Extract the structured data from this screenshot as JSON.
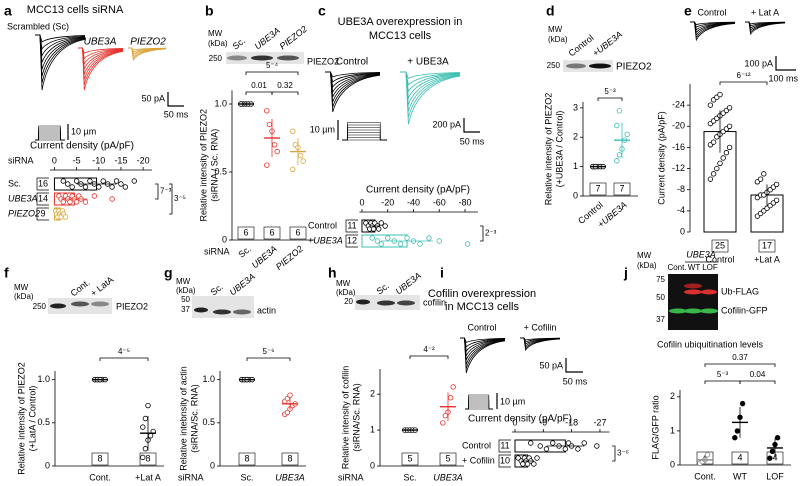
{
  "figure": {
    "panel_letters": [
      "a",
      "b",
      "c",
      "d",
      "e",
      "f",
      "g",
      "h",
      "i",
      "j"
    ],
    "a": {
      "title": "MCC13 cells siRNA",
      "traces": [
        "Scrambled (Sc)",
        "UBE3A",
        "PIEZO2"
      ],
      "scale": [
        "50 pA",
        "50 ms",
        "10 µm"
      ]
    },
    "b": {
      "mw": [
        "MW",
        "(kDa)"
      ],
      "marker": [
        250
      ],
      "lanes": [
        "Sc.",
        "UBE3A",
        "PIEZO2"
      ],
      "band": "PIEZO2"
    },
    "c": {
      "title": [
        "UBE3A overexpression in",
        "MCC13 cells"
      ],
      "traces": [
        "Control",
        "+ UBE3A"
      ],
      "scale": [
        "10 µm",
        "200 pA",
        "50 ms"
      ]
    },
    "d": {
      "mw": [
        "MW",
        "(kDa)"
      ],
      "marker": [
        250
      ],
      "lanes": [
        "Control",
        "+UBE3A"
      ],
      "band": "PIEZO2"
    },
    "e": {
      "traces": [
        "Control",
        "+ Lat A"
      ],
      "scale": [
        "100 pA",
        "100 ms"
      ]
    },
    "f": {
      "mw": [
        "MW",
        "(kDa)"
      ],
      "marker": [
        250
      ],
      "lanes": [
        "Cont.",
        "+ LatA"
      ],
      "band": "PIEZO2"
    },
    "g": {
      "mw": [
        "MW",
        "(kDa)"
      ],
      "marker": [
        50,
        37
      ],
      "lanes": [
        "Sc.",
        "UBE3A"
      ],
      "band": "actin"
    },
    "h": {
      "mw": [
        "MW",
        "(kDa)"
      ],
      "marker": [
        20
      ],
      "lanes": [
        "Sc.",
        "UBE3A"
      ],
      "band": "cofilin"
    },
    "i": {
      "title": [
        "Cofilin overexpression",
        "in MCC13 cells"
      ],
      "traces": [
        "Control",
        "+ Cofilin"
      ],
      "scale": [
        "50 pA",
        "50 ms",
        "10 µm"
      ]
    },
    "j": {
      "mw": [
        "MW",
        "(kDa)"
      ],
      "group": "UBE3A",
      "lanes": [
        "Cont.",
        "WT",
        "LOF"
      ],
      "marker": [
        75,
        50,
        37
      ],
      "bands": [
        "Ub-FLAG",
        "Cofilin-GFP"
      ]
    }
  },
  "chart_data": [
    {
      "type": "bar",
      "orientation": "horizontal",
      "title": "Current density (pA/pF)",
      "xlabel": "siRNA",
      "categories": [
        "Sc.",
        "UBE3A",
        "PIEZO2"
      ],
      "n": [
        16,
        14,
        9
      ],
      "values": [
        -9.5,
        -4.5,
        -1.3
      ],
      "errors": [
        4.5,
        3,
        0.7
      ],
      "points": [
        [
          -2,
          -3,
          -4,
          -5,
          -6,
          -7,
          -8,
          -9,
          -10,
          -11,
          -12,
          -13,
          -14,
          -15,
          -16,
          -18
        ],
        [
          -1,
          -1.5,
          -2,
          -2.5,
          -3,
          -3.5,
          -4,
          -4.5,
          -5,
          -5.5,
          -6,
          -7,
          -9,
          -13
        ],
        [
          -0.3,
          -0.5,
          -0.8,
          -1,
          -1.2,
          -1.5,
          -1.8,
          -2,
          -2.5
        ]
      ],
      "colors": [
        "#000000",
        "#e8302a",
        "#d9a53a"
      ],
      "xlim": [
        1,
        -22
      ],
      "xticks": [
        0,
        -5,
        -10,
        -15,
        -20
      ],
      "stats": [
        "7⁻³",
        "3⁻⁵"
      ]
    },
    {
      "type": "dot",
      "ylabel": [
        "Relative intensity of PIEZO2",
        "(siRNA / Sc. RNA)"
      ],
      "xlabel": "siRNA",
      "categories": [
        "Sc.",
        "UBE3A",
        "PIEZO2"
      ],
      "n": [
        6,
        6,
        6
      ],
      "values": [
        1.0,
        0.75,
        0.65
      ],
      "errors": [
        0.01,
        0.14,
        0.1
      ],
      "points": [
        [
          1,
          1,
          1,
          1,
          1,
          1
        ],
        [
          0.95,
          0.85,
          0.8,
          0.7,
          0.65,
          0.55
        ],
        [
          0.8,
          0.7,
          0.68,
          0.62,
          0.58,
          0.52
        ]
      ],
      "colors": [
        "#000000",
        "#e8302a",
        "#d9a53a"
      ],
      "ylim": [
        0,
        1.1
      ],
      "yticks": [
        0,
        0.5,
        {
          "value": 1,
          "label": "1.0"
        }
      ],
      "stats": [
        "0.01",
        "0.32",
        "5⁻⁴"
      ]
    },
    {
      "type": "bar",
      "orientation": "horizontal",
      "title": "Current density (pA/pF)",
      "categories": [
        "Control",
        "+UBE3A"
      ],
      "n": [
        11,
        12
      ],
      "values": [
        -10,
        -35
      ],
      "errors": [
        4,
        20
      ],
      "points": [
        [
          -3,
          -5,
          -6,
          -7,
          -8,
          -9,
          -10,
          -12,
          -13,
          -15,
          -18
        ],
        [
          -8,
          -12,
          -15,
          -20,
          -25,
          -30,
          -35,
          -40,
          -45,
          -52,
          -60,
          -82
        ]
      ],
      "colors": [
        "#000000",
        "#3cbfb0"
      ],
      "xlim": [
        2,
        -90
      ],
      "xticks": [
        0,
        -20,
        -40,
        -60,
        -80
      ],
      "stats": [
        "2⁻³"
      ]
    },
    {
      "type": "dot",
      "ylabel": [
        "Relative intensity of PIEZO2",
        "(+UBE3A / Control)"
      ],
      "categories": [
        "Control",
        "+UBE3A"
      ],
      "n": [
        7,
        7
      ],
      "values": [
        1.0,
        1.9
      ],
      "errors": [
        0.02,
        0.6
      ],
      "points": [
        [
          1,
          1,
          1,
          1,
          1,
          1,
          1
        ],
        [
          1.2,
          1.4,
          1.6,
          1.9,
          2.1,
          2.4,
          2.9
        ]
      ],
      "colors": [
        "#000000",
        "#3cbfb0"
      ],
      "ylim": [
        0,
        3.2
      ],
      "yticks": [
        0,
        1,
        2,
        3
      ],
      "stats": [
        "5⁻³"
      ]
    },
    {
      "type": "bar",
      "orientation": "vertical",
      "ylabel": [
        "Current density (pA/pF)"
      ],
      "categories": [
        "Control",
        "+Lat A"
      ],
      "n": [
        25,
        17
      ],
      "values": [
        -19,
        -7
      ],
      "errors": [
        4,
        2
      ],
      "points": [
        [
          -10,
          -11,
          -12,
          -13,
          -14,
          -15,
          -16,
          -16.5,
          -17,
          -18,
          -18.5,
          -19,
          -19.5,
          -20,
          -20.5,
          -21,
          -21.5,
          -22,
          -22.5,
          -23,
          -23.5,
          -24,
          -25,
          -25.5,
          -26
        ],
        [
          -3,
          -3.5,
          -4,
          -4.5,
          -5,
          -5.5,
          -6,
          -6.5,
          -7,
          -7,
          -7.5,
          -8,
          -8.5,
          -9,
          -9.5,
          -10,
          -11
        ]
      ],
      "colors": [
        "#000000",
        "#000000"
      ],
      "ylim": [
        0,
        -28
      ],
      "yticks": [
        0,
        -4,
        -8,
        -12,
        -16,
        -20,
        -24
      ],
      "stats": [
        "6⁻¹²"
      ]
    },
    {
      "type": "dot",
      "ylabel": [
        "Relative intensity of PIEZO2",
        "(+LatA / Control)"
      ],
      "categories": [
        "Cont.",
        "+Lat A"
      ],
      "n": [
        8,
        8
      ],
      "values": [
        1.0,
        0.38
      ],
      "errors": [
        0.01,
        0.2
      ],
      "points": [
        [
          1,
          1,
          1,
          1,
          1,
          1,
          1,
          1
        ],
        [
          0.1,
          0.2,
          0.3,
          0.35,
          0.4,
          0.45,
          0.55,
          0.7
        ]
      ],
      "colors": [
        "#000000",
        "#000000"
      ],
      "ylim": [
        0,
        1.1
      ],
      "yticks": [
        0,
        0.5,
        {
          "value": 1,
          "label": "1.0"
        }
      ],
      "stats": [
        "4⁻⁵"
      ]
    },
    {
      "type": "dot",
      "ylabel": [
        "Relative intebnsity of actin",
        "(siRNA/Sc. RNA)"
      ],
      "xlabel": "siRNA",
      "categories": [
        "Sc.",
        "UBE3A"
      ],
      "n": [
        8,
        8
      ],
      "values": [
        1.0,
        0.72
      ],
      "errors": [
        0.01,
        0.07
      ],
      "points": [
        [
          1,
          1,
          1,
          1,
          1,
          1,
          1,
          1
        ],
        [
          0.6,
          0.62,
          0.66,
          0.7,
          0.72,
          0.75,
          0.78,
          0.82
        ]
      ],
      "colors": [
        "#000000",
        "#e8302a"
      ],
      "ylim": [
        0,
        1.1
      ],
      "yticks": [
        0,
        0.5,
        {
          "value": 1,
          "label": "1.0"
        }
      ],
      "stats": [
        "5⁻⁶"
      ]
    },
    {
      "type": "dot",
      "ylabel": [
        "Relative intensity of cofilin",
        "(siRNA/Sc. RNA)"
      ],
      "xlabel": "siRNA",
      "categories": [
        "Sc.",
        "UBE3A"
      ],
      "n": [
        5,
        5
      ],
      "values": [
        1.0,
        1.65
      ],
      "errors": [
        0.02,
        0.4
      ],
      "points": [
        [
          1,
          1,
          1,
          1,
          1
        ],
        [
          1.2,
          1.4,
          1.5,
          1.9,
          2.2
        ]
      ],
      "colors": [
        "#000000",
        "#e8302a"
      ],
      "ylim": [
        0,
        2.7
      ],
      "yticks": [
        0,
        1,
        2
      ],
      "stats": [
        "4⁻²"
      ]
    },
    {
      "type": "bar",
      "orientation": "horizontal",
      "title": "Current density (pA/pF)",
      "categories": [
        "Control",
        "+ Cofilin"
      ],
      "n": [
        11,
        10
      ],
      "values": [
        -16,
        -4
      ],
      "errors": [
        6,
        2
      ],
      "points": [
        [
          -5,
          -8,
          -10,
          -12,
          -14,
          -16,
          -17,
          -18,
          -20,
          -22,
          -26
        ],
        [
          -1,
          -2,
          -2.5,
          -3,
          -3.5,
          -4,
          -4.5,
          -5,
          -6,
          -7
        ]
      ],
      "colors": [
        "#000000",
        "#000000"
      ],
      "xlim": [
        1,
        -30
      ],
      "xticks": [
        0,
        -9,
        -18,
        -27
      ],
      "stats": [
        "3⁻⁶"
      ]
    },
    {
      "type": "dot",
      "title": "Cofilin ubiquitination levels",
      "ylabel": [
        "FLAG/GFP ratio"
      ],
      "categories": [
        "Cont.",
        "WT",
        "LOF"
      ],
      "n": [
        4,
        4,
        4
      ],
      "values": [
        0.15,
        1.25,
        0.5
      ],
      "errors": [
        0.12,
        0.45,
        0.28
      ],
      "points": [
        [
          0.05,
          0.1,
          0.15,
          0.3
        ],
        [
          0.8,
          1.0,
          1.4,
          1.8
        ],
        [
          0.2,
          0.4,
          0.6,
          0.8
        ]
      ],
      "colors": [
        "#888888",
        "#000000",
        "#000000"
      ],
      "ylim": [
        0,
        2.2
      ],
      "yticks": [
        0,
        1,
        2
      ],
      "stats": [
        "0.37",
        "5⁻³",
        "0.04"
      ]
    }
  ]
}
